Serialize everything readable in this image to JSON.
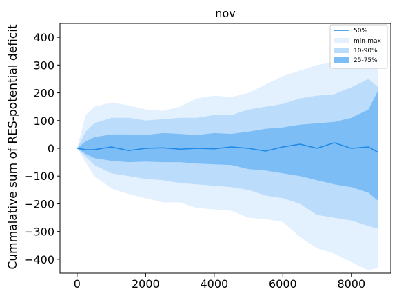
{
  "chart_data": {
    "type": "area",
    "title": "nov",
    "xlabel": "",
    "ylabel": "Cummalative sum of RES-potential deficit",
    "xlim": [
      -500,
      9150
    ],
    "ylim": [
      -450,
      450
    ],
    "xticks": [
      0,
      2000,
      4000,
      6000,
      8000
    ],
    "yticks": [
      -400,
      -300,
      -200,
      -100,
      0,
      100,
      200,
      300,
      400
    ],
    "ytick_labels": [
      "−400",
      "−300",
      "−200",
      "−100",
      "0",
      "100",
      "200",
      "300",
      "400"
    ],
    "grid": false,
    "legend_position": "top-right",
    "x": [
      0,
      250,
      500,
      1000,
      1500,
      2000,
      2500,
      3000,
      3500,
      4000,
      4500,
      5000,
      5500,
      6000,
      6500,
      7000,
      7500,
      8000,
      8500,
      8784
    ],
    "series": [
      {
        "name": "50%",
        "kind": "line",
        "values": [
          0,
          -5,
          -5,
          5,
          -8,
          0,
          2,
          -3,
          0,
          -2,
          5,
          0,
          -10,
          5,
          15,
          0,
          20,
          0,
          5,
          -15
        ]
      },
      {
        "name": "min-max",
        "kind": "band",
        "upper": [
          0,
          120,
          150,
          165,
          155,
          140,
          135,
          150,
          180,
          190,
          185,
          200,
          230,
          260,
          280,
          300,
          310,
          330,
          360,
          350
        ],
        "lower": [
          0,
          -50,
          -100,
          -145,
          -165,
          -180,
          -195,
          -195,
          -215,
          -220,
          -225,
          -250,
          -255,
          -265,
          -320,
          -360,
          -380,
          -410,
          -440,
          -430
        ]
      },
      {
        "name": "10-90%",
        "kind": "band",
        "upper": [
          0,
          60,
          90,
          110,
          110,
          100,
          105,
          110,
          110,
          120,
          120,
          140,
          150,
          160,
          180,
          190,
          195,
          220,
          250,
          220
        ],
        "lower": [
          0,
          -30,
          -60,
          -90,
          -100,
          -110,
          -115,
          -125,
          -130,
          -135,
          -140,
          -150,
          -170,
          -180,
          -200,
          -240,
          -250,
          -260,
          -280,
          -290
        ]
      },
      {
        "name": "25-75%",
        "kind": "band",
        "upper": [
          0,
          25,
          40,
          50,
          50,
          48,
          55,
          52,
          48,
          55,
          52,
          60,
          70,
          75,
          85,
          90,
          95,
          110,
          140,
          210
        ],
        "lower": [
          0,
          -20,
          -35,
          -45,
          -50,
          -48,
          -50,
          -50,
          -55,
          -58,
          -60,
          -75,
          -80,
          -90,
          -100,
          -115,
          -130,
          -140,
          -160,
          -190
        ]
      }
    ],
    "colors": {
      "line": "#1e88e5",
      "minmax": "#e3f0fd",
      "p10_90": "#bcdcfb",
      "p25_75": "#7cbdf6"
    }
  }
}
